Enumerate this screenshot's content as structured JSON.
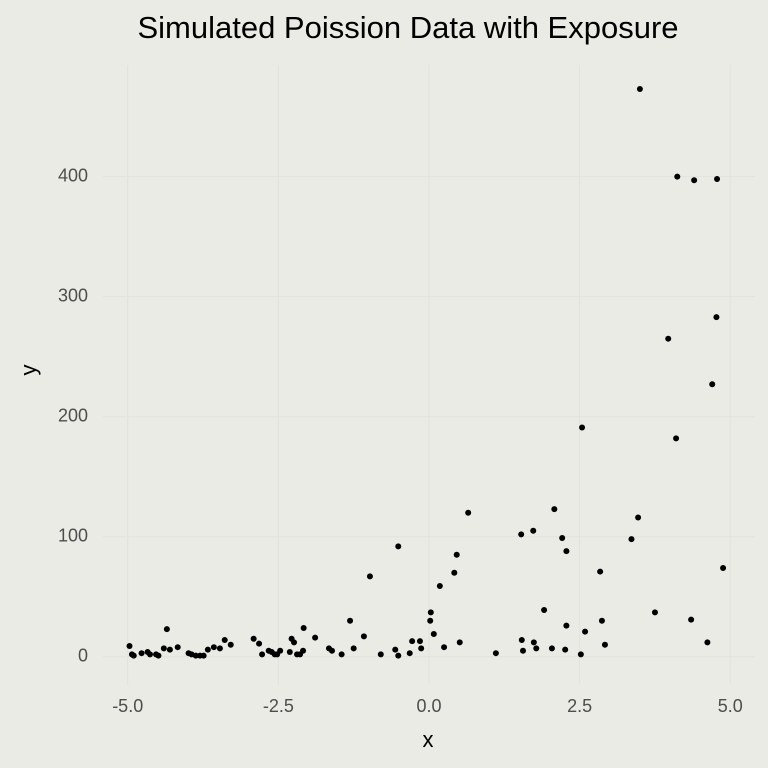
{
  "chart_data": {
    "type": "scatter",
    "title": "Simulated Poission Data with Exposure",
    "x_label": "x",
    "y_label": "y",
    "color": "#000000",
    "grid": true,
    "xlim": [
      -5.41,
      5.41
    ],
    "ylim": [
      -23.5,
      493
    ],
    "xticks": [
      {
        "value": -5,
        "label": "-5.0"
      },
      {
        "value": -2.5,
        "label": "-2.5"
      },
      {
        "value": 0,
        "label": "0.0"
      },
      {
        "value": 2.5,
        "label": "2.5"
      },
      {
        "value": 5,
        "label": "5.0"
      }
    ],
    "yticks": [
      0,
      100,
      200,
      300,
      400
    ],
    "x": [
      -4.97,
      -4.93,
      -4.9,
      -4.77,
      -4.67,
      -4.63,
      -4.53,
      -4.49,
      -4.4,
      -4.35,
      -4.3,
      -4.17,
      -3.99,
      -3.94,
      -3.87,
      -3.8,
      -3.74,
      -3.67,
      -3.57,
      -3.47,
      -3.39,
      -3.29,
      -2.91,
      -2.82,
      -2.77,
      -2.66,
      -2.61,
      -2.56,
      -2.52,
      -2.47,
      -2.31,
      -2.28,
      -2.24,
      -2.19,
      -2.14,
      -2.09,
      -2.08,
      -1.89,
      -1.66,
      -1.61,
      -1.45,
      -1.31,
      -1.25,
      -1.08,
      -0.98,
      -0.8,
      -0.56,
      -0.51,
      -0.51,
      -0.32,
      -0.28,
      -0.15,
      -0.13,
      0.02,
      0.03,
      0.08,
      0.18,
      0.25,
      0.42,
      0.46,
      0.51,
      0.65,
      1.11,
      1.53,
      1.54,
      1.56,
      1.73,
      1.74,
      1.78,
      1.91,
      2.04,
      2.08,
      2.21,
      2.28,
      2.28,
      2.26,
      2.52,
      2.54,
      2.59,
      2.84,
      2.87,
      2.92,
      3.36,
      3.47,
      3.5,
      3.75,
      3.97,
      4.1,
      4.12,
      4.35,
      4.4,
      4.62,
      4.7,
      4.77,
      4.78,
      4.88
    ],
    "values": [
      9,
      2,
      1,
      3,
      4,
      2,
      2,
      1,
      7,
      23,
      6,
      8,
      3,
      2,
      1,
      1,
      1,
      6,
      8,
      7,
      14,
      10,
      15,
      11,
      2,
      5,
      4,
      2,
      2,
      5,
      4,
      15,
      12,
      2,
      2,
      5,
      24,
      16,
      7,
      5,
      2,
      30,
      7,
      17,
      67,
      2,
      6,
      92,
      1,
      3,
      13,
      13,
      7,
      30,
      37,
      19,
      59,
      8,
      70,
      85,
      12,
      120,
      3,
      102,
      14,
      5,
      105,
      12,
      7,
      39,
      7,
      123,
      99,
      88,
      26,
      6,
      2,
      191,
      21,
      71,
      30,
      10,
      98,
      116,
      473,
      37,
      265,
      182,
      400,
      31,
      397,
      12,
      227,
      283,
      398,
      74
    ]
  }
}
